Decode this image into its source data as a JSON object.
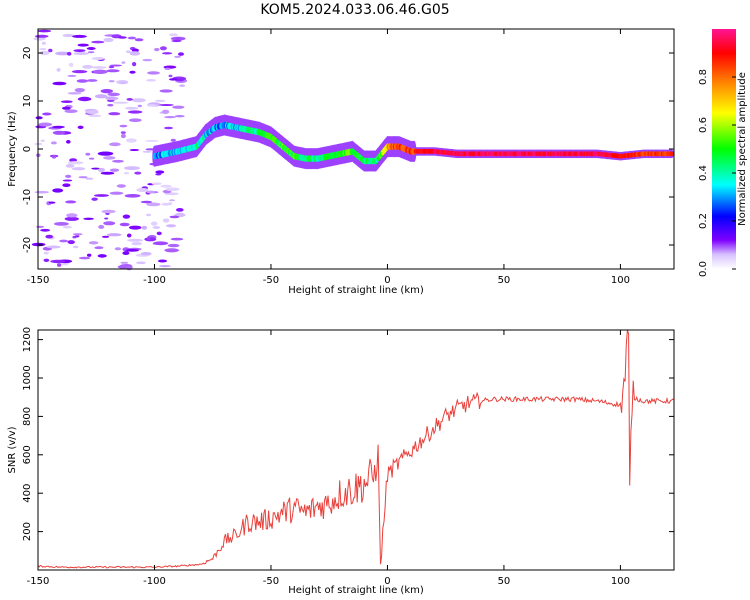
{
  "title": "KOM5.2024.033.06.46.G05",
  "chart_data": [
    {
      "type": "heatmap",
      "xlabel": "Height of straight line (km)",
      "ylabel": "Frequency (Hz)",
      "xlim": [
        -150,
        123
      ],
      "ylim": [
        -25,
        25
      ],
      "x_ticks": [
        -150,
        -100,
        -50,
        0,
        50,
        100
      ],
      "y_ticks": [
        -20,
        -10,
        0,
        10,
        20
      ],
      "colorbar": {
        "label": "Normalized spectral amplitude",
        "range": [
          0,
          1
        ],
        "ticks": [
          0.0,
          0.2,
          0.4,
          0.6,
          0.8
        ],
        "colormap": [
          "#ffffff",
          "#d8c2ff",
          "#7f00ff",
          "#0000ff",
          "#00ffff",
          "#00ff00",
          "#ffff00",
          "#ff8000",
          "#ff0000",
          "#ff1493"
        ]
      },
      "ridge": {
        "x": [
          -100,
          -90,
          -82,
          -78,
          -74,
          -70,
          -65,
          -60,
          -55,
          -50,
          -45,
          -40,
          -35,
          -30,
          -25,
          -20,
          -15,
          -10,
          -5,
          0,
          5,
          10,
          15,
          20,
          30,
          50,
          70,
          90,
          100,
          110,
          123
        ],
        "frequency": [
          -1.5,
          -0.5,
          0.5,
          3,
          4.5,
          5,
          4.5,
          4,
          3.5,
          2.5,
          0.5,
          -1.5,
          -2,
          -2,
          -1.5,
          -1,
          -0.5,
          -2.5,
          -2.5,
          0.5,
          0.5,
          -0.5,
          -0.5,
          -0.5,
          -1,
          -1,
          -1,
          -1,
          -1.5,
          -1,
          -1
        ],
        "amplitude": [
          0.25,
          0.35,
          0.4,
          0.35,
          0.3,
          0.3,
          0.35,
          0.4,
          0.45,
          0.5,
          0.5,
          0.5,
          0.45,
          0.4,
          0.45,
          0.5,
          0.55,
          0.45,
          0.4,
          0.75,
          0.85,
          0.85,
          0.9,
          0.95,
          0.95,
          0.95,
          0.95,
          0.95,
          0.9,
          0.85,
          0.85
        ]
      }
    },
    {
      "type": "line",
      "xlabel": "Height of straight line (km)",
      "ylabel": "SNR (v/v)",
      "xlim": [
        -150,
        123
      ],
      "ylim": [
        0,
        1250
      ],
      "x_ticks": [
        -150,
        -100,
        -50,
        0,
        50,
        100
      ],
      "y_ticks": [
        200,
        400,
        600,
        800,
        1000,
        1200
      ],
      "color": "#e8413c",
      "series": [
        {
          "x": [
            -150,
            -140,
            -130,
            -120,
            -110,
            -100,
            -90,
            -80,
            -75,
            -70,
            -65,
            -60,
            -55,
            -50,
            -45,
            -40,
            -35,
            -30,
            -25,
            -20,
            -15,
            -10,
            -5,
            -4,
            -3,
            0,
            5,
            10,
            15,
            20,
            25,
            30,
            35,
            40,
            45,
            50,
            60,
            70,
            80,
            90,
            95,
            100,
            102,
            103,
            104,
            105,
            110,
            115,
            123
          ],
          "values": [
            20,
            15,
            15,
            15,
            15,
            15,
            20,
            30,
            60,
            150,
            180,
            250,
            250,
            270,
            300,
            320,
            300,
            330,
            350,
            400,
            420,
            450,
            500,
            620,
            30,
            500,
            560,
            620,
            680,
            740,
            800,
            840,
            870,
            880,
            890,
            890,
            890,
            890,
            890,
            880,
            870,
            860,
            1000,
            1230,
            440,
            900,
            880,
            880,
            880
          ]
        }
      ]
    }
  ]
}
